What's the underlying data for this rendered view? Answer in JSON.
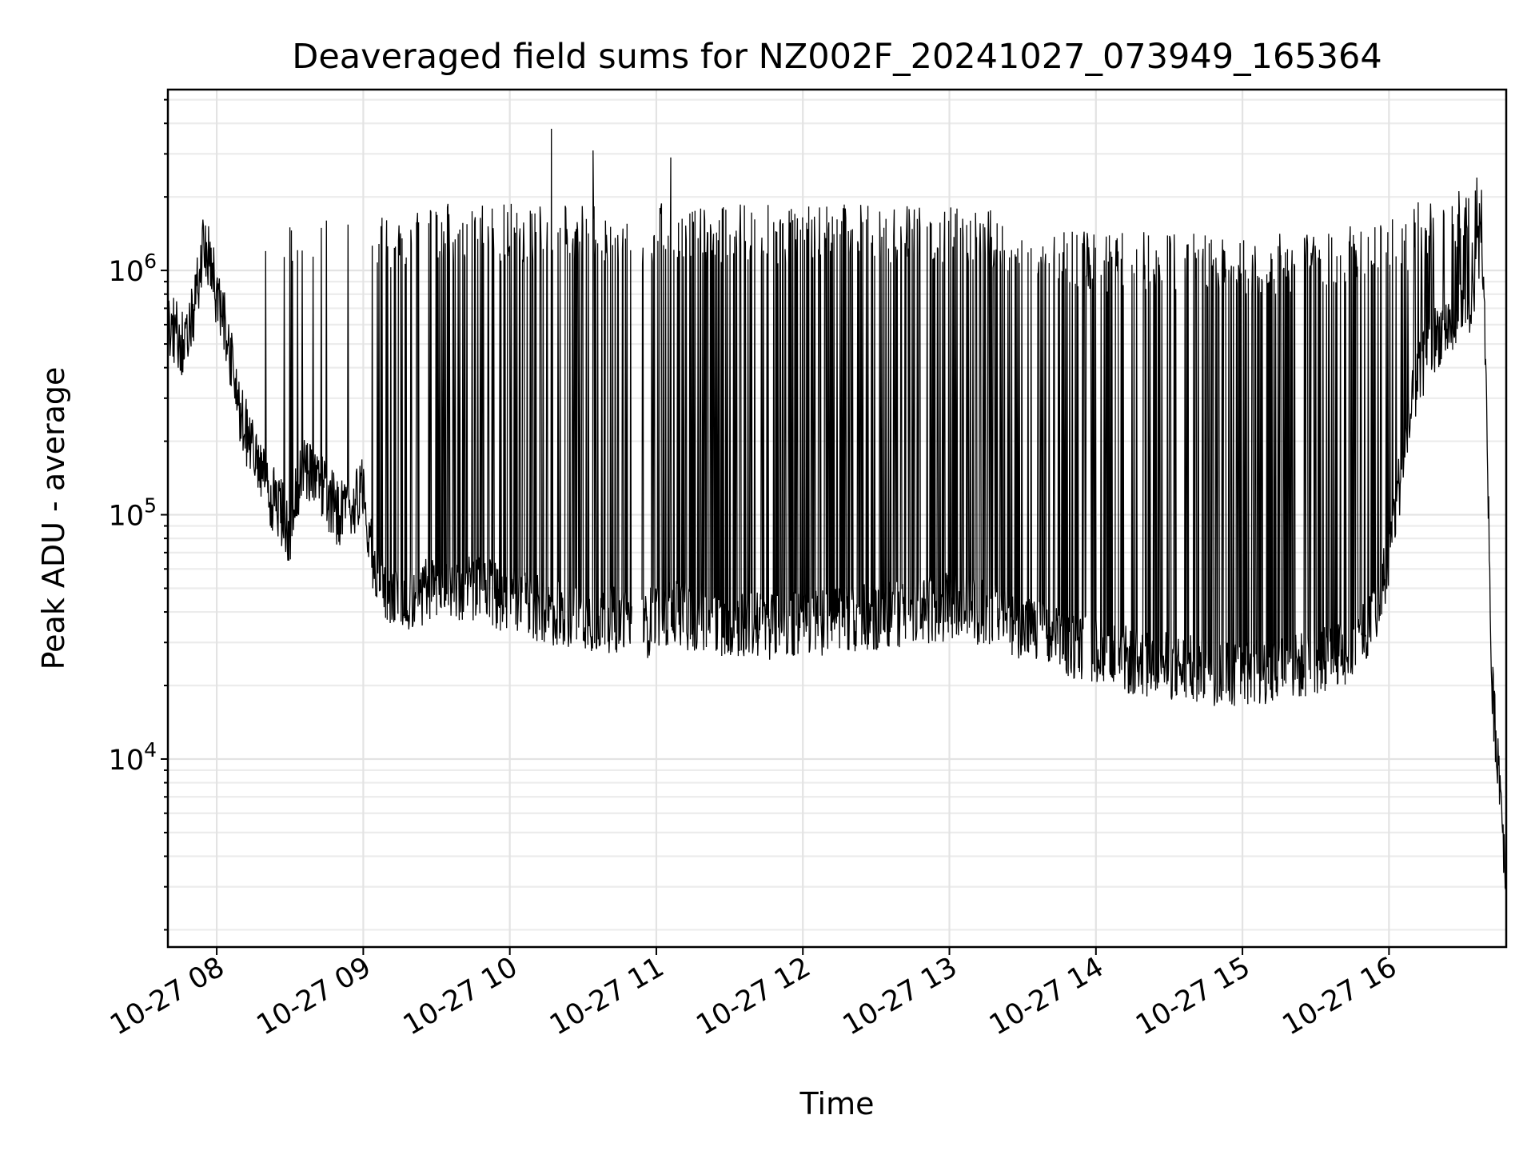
{
  "chart_data": {
    "type": "line",
    "title": "Deaveraged field sums for NZ002F_20241027_073949_165364",
    "xlabel": "Time",
    "ylabel": "Peak ADU - average",
    "yscale": "log",
    "grid": true,
    "xlim": [
      "2024-10-27T07:40",
      "2024-10-27T16:48"
    ],
    "ylim": [
      1700,
      5500000
    ],
    "x_ticks": [
      {
        "value": "2024-10-27T08:00",
        "label": "10-27 08"
      },
      {
        "value": "2024-10-27T09:00",
        "label": "10-27 09"
      },
      {
        "value": "2024-10-27T10:00",
        "label": "10-27 10"
      },
      {
        "value": "2024-10-27T11:00",
        "label": "10-27 11"
      },
      {
        "value": "2024-10-27T12:00",
        "label": "10-27 12"
      },
      {
        "value": "2024-10-27T13:00",
        "label": "10-27 13"
      },
      {
        "value": "2024-10-27T14:00",
        "label": "10-27 14"
      },
      {
        "value": "2024-10-27T15:00",
        "label": "10-27 15"
      },
      {
        "value": "2024-10-27T16:00",
        "label": "10-27 16"
      }
    ],
    "y_ticks": [
      {
        "value": 10000,
        "base": "10",
        "exp": "4"
      },
      {
        "value": 100000,
        "base": "10",
        "exp": "5"
      },
      {
        "value": 1000000,
        "base": "10",
        "exp": "6"
      }
    ],
    "series": [
      {
        "color": "#000000",
        "baseline": {
          "x": [
            "2024-10-27T07:40",
            "2024-10-27T07:48",
            "2024-10-27T07:55",
            "2024-10-27T08:00",
            "2024-10-27T08:05",
            "2024-10-27T08:10",
            "2024-10-27T08:15",
            "2024-10-27T08:20",
            "2024-10-27T08:25",
            "2024-10-27T08:30",
            "2024-10-27T08:35",
            "2024-10-27T08:40",
            "2024-10-27T08:45",
            "2024-10-27T08:50",
            "2024-10-27T08:55",
            "2024-10-27T09:00",
            "2024-10-27T09:05",
            "2024-10-27T09:10",
            "2024-10-27T09:20",
            "2024-10-27T09:30",
            "2024-10-27T09:45",
            "2024-10-27T10:00",
            "2024-10-27T10:15",
            "2024-10-27T10:30",
            "2024-10-27T10:45",
            "2024-10-27T10:55",
            "2024-10-27T11:00",
            "2024-10-27T11:15",
            "2024-10-27T11:30",
            "2024-10-27T11:45",
            "2024-10-27T12:00",
            "2024-10-27T12:15",
            "2024-10-27T12:30",
            "2024-10-27T12:45",
            "2024-10-27T13:00",
            "2024-10-27T13:15",
            "2024-10-27T13:30",
            "2024-10-27T13:45",
            "2024-10-27T14:00",
            "2024-10-27T14:15",
            "2024-10-27T14:30",
            "2024-10-27T14:45",
            "2024-10-27T15:00",
            "2024-10-27T15:15",
            "2024-10-27T15:30",
            "2024-10-27T15:45",
            "2024-10-27T15:55",
            "2024-10-27T16:00",
            "2024-10-27T16:05",
            "2024-10-27T16:10",
            "2024-10-27T16:15",
            "2024-10-27T16:20",
            "2024-10-27T16:25",
            "2024-10-27T16:30",
            "2024-10-27T16:35",
            "2024-10-27T16:38",
            "2024-10-27T16:40",
            "2024-10-27T16:42",
            "2024-10-27T16:44",
            "2024-10-27T16:46",
            "2024-10-27T16:48"
          ],
          "y": [
            600000,
            480000,
            1300000,
            800000,
            500000,
            250000,
            180000,
            130000,
            110000,
            85000,
            160000,
            150000,
            120000,
            100000,
            110000,
            130000,
            55000,
            48000,
            45000,
            52000,
            50000,
            45000,
            40000,
            38000,
            37000,
            34000,
            40000,
            38000,
            36000,
            35000,
            36000,
            37000,
            38000,
            40000,
            42000,
            40000,
            35000,
            30000,
            28000,
            25000,
            24000,
            23000,
            22000,
            23000,
            25000,
            28000,
            40000,
            70000,
            150000,
            300000,
            450000,
            550000,
            600000,
            650000,
            800000,
            1400000,
            300000,
            20000,
            12000,
            7000,
            3000
          ]
        },
        "upper_envelope": {
          "x": [
            "2024-10-27T07:40",
            "2024-10-27T08:00",
            "2024-10-27T08:20",
            "2024-10-27T08:40",
            "2024-10-27T09:00",
            "2024-10-27T09:30",
            "2024-10-27T10:00",
            "2024-10-27T10:30",
            "2024-10-27T11:00",
            "2024-10-27T11:30",
            "2024-10-27T12:00",
            "2024-10-27T12:30",
            "2024-10-27T13:00",
            "2024-10-27T13:30",
            "2024-10-27T14:00",
            "2024-10-27T14:30",
            "2024-10-27T15:00",
            "2024-10-27T15:30",
            "2024-10-27T16:00",
            "2024-10-27T16:20",
            "2024-10-27T16:35"
          ],
          "y": [
            750000,
            1100000,
            1300000,
            1400000,
            1400000,
            1500000,
            1500000,
            1500000,
            1500000,
            1500000,
            1450000,
            1500000,
            1500000,
            1350000,
            1150000,
            1150000,
            1100000,
            1150000,
            1300000,
            1600000,
            1800000
          ]
        },
        "spikes": [
          {
            "x": "2024-10-27T08:20",
            "y": 1200000
          },
          {
            "x": "2024-10-27T08:30",
            "y": 1500000
          },
          {
            "x": "2024-10-27T08:45",
            "y": 1600000
          },
          {
            "x": "2024-10-27T09:35",
            "y": 1700000
          },
          {
            "x": "2024-10-27T10:17",
            "y": 3800000
          },
          {
            "x": "2024-10-27T10:34",
            "y": 3100000
          },
          {
            "x": "2024-10-27T11:06",
            "y": 2900000
          },
          {
            "x": "2024-10-27T16:12",
            "y": 1900000
          },
          {
            "x": "2024-10-27T16:36",
            "y": 2400000
          }
        ],
        "gaps": [
          [
            "2024-10-27T10:50",
            "2024-10-27T10:54"
          ]
        ]
      }
    ]
  }
}
